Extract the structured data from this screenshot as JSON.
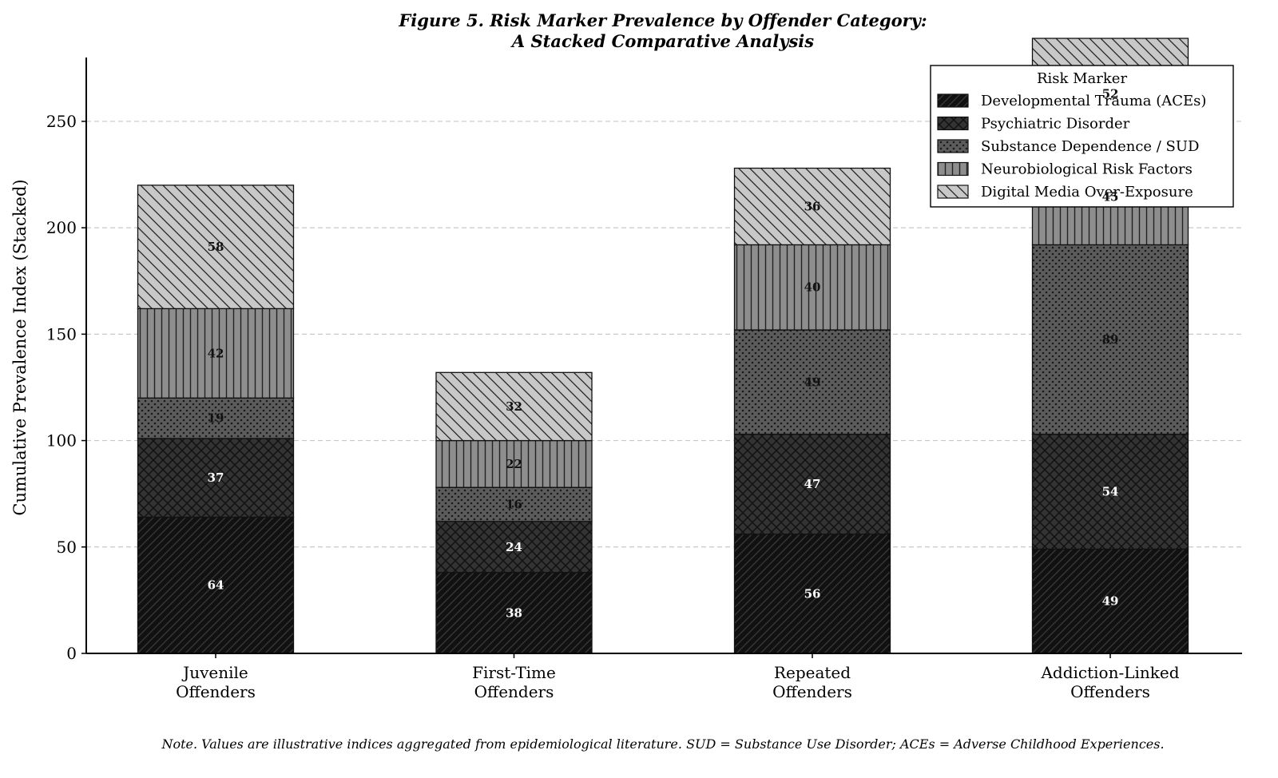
{
  "chart_data": {
    "type": "bar",
    "stacked": true,
    "title": [
      "Figure 5. Risk Marker Prevalence by Offender Category:",
      "A Stacked Comparative Analysis"
    ],
    "ylabel": "Cumulative Prevalence Index (Stacked)",
    "xlabel": "",
    "ylim": [
      0,
      280
    ],
    "yticks": [
      0,
      50,
      100,
      150,
      200,
      250
    ],
    "grid": "horizontal dashed",
    "categories": [
      [
        "Juvenile",
        "Offenders"
      ],
      [
        "First-Time",
        "Offenders"
      ],
      [
        "Repeated",
        "Offenders"
      ],
      [
        "Addiction-Linked",
        "Offenders"
      ]
    ],
    "series": [
      {
        "name": "Developmental Trauma (ACEs)",
        "values": [
          64,
          38,
          56,
          49
        ],
        "color": "#111111",
        "hatch": "diag-forward"
      },
      {
        "name": "Psychiatric Disorder",
        "values": [
          37,
          24,
          47,
          54
        ],
        "color": "#333333",
        "hatch": "crosshatch"
      },
      {
        "name": "Substance Dependence / SUD",
        "values": [
          19,
          16,
          49,
          89
        ],
        "color": "#5c5c5c",
        "hatch": "dots"
      },
      {
        "name": "Neurobiological Risk Factors",
        "values": [
          42,
          22,
          40,
          45
        ],
        "color": "#8e8e8e",
        "hatch": "vertical"
      },
      {
        "name": "Digital Media Over-Exposure",
        "values": [
          58,
          32,
          36,
          52
        ],
        "color": "#c8c8c8",
        "hatch": "diag-back"
      }
    ],
    "legend": {
      "title": "Risk Marker",
      "placement": "top-right"
    },
    "note": "Note. Values are illustrative indices aggregated from epidemiological literature. SUD = Substance Use Disorder; ACEs = Adverse Childhood Experiences."
  }
}
